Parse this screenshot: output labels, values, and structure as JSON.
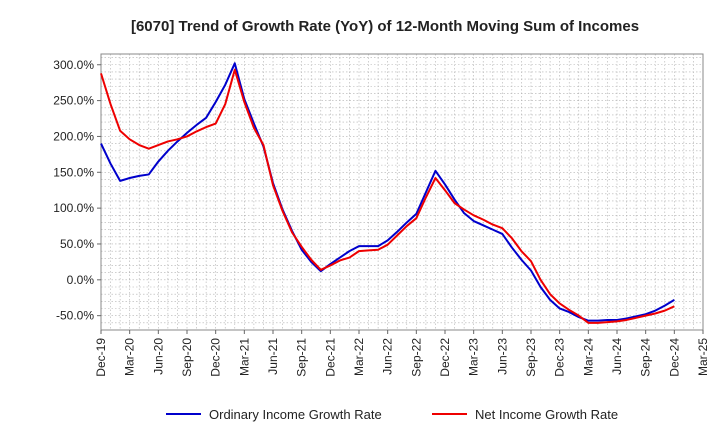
{
  "chart_data": {
    "type": "line",
    "title": "[6070]  Trend of Growth Rate (YoY) of 12-Month Moving Sum of Incomes",
    "xlabel": "",
    "ylabel": "",
    "ylim": [
      -70,
      315
    ],
    "y_ticks": [
      300,
      250,
      200,
      150,
      100,
      50,
      0,
      -50
    ],
    "y_tick_labels": [
      "300.0%",
      "250.0%",
      "200.0%",
      "150.0%",
      "100.0%",
      "50.0%",
      "0.0%",
      "-50.0%"
    ],
    "x_range": [
      "2019-12",
      "2025-03"
    ],
    "x_tick_labels": [
      "Dec-19",
      "Mar-20",
      "Jun-20",
      "Sep-20",
      "Dec-20",
      "Mar-21",
      "Jun-21",
      "Sep-21",
      "Dec-21",
      "Mar-22",
      "Jun-22",
      "Sep-22",
      "Dec-22",
      "Mar-23",
      "Jun-23",
      "Sep-23",
      "Dec-23",
      "Mar-24",
      "Jun-24",
      "Sep-24",
      "Dec-24",
      "Mar-25"
    ],
    "grid": true,
    "legend_position": "bottom",
    "x": [
      "2019-12",
      "2020-01",
      "2020-02",
      "2020-03",
      "2020-04",
      "2020-05",
      "2020-06",
      "2020-07",
      "2020-08",
      "2020-09",
      "2020-10",
      "2020-11",
      "2020-12",
      "2021-01",
      "2021-02",
      "2021-03",
      "2021-04",
      "2021-05",
      "2021-06",
      "2021-07",
      "2021-08",
      "2021-09",
      "2021-10",
      "2021-11",
      "2021-12",
      "2022-01",
      "2022-02",
      "2022-03",
      "2022-04",
      "2022-05",
      "2022-06",
      "2022-07",
      "2022-08",
      "2022-09",
      "2022-10",
      "2022-11",
      "2022-12",
      "2023-01",
      "2023-02",
      "2023-03",
      "2023-04",
      "2023-05",
      "2023-06",
      "2023-07",
      "2023-08",
      "2023-09",
      "2023-10",
      "2023-11",
      "2023-12",
      "2024-01",
      "2024-02",
      "2024-03",
      "2024-04",
      "2024-05",
      "2024-06",
      "2024-07",
      "2024-08",
      "2024-09",
      "2024-10",
      "2024-11",
      "2024-12"
    ],
    "series": [
      {
        "name": "Ordinary Income Growth Rate",
        "color": "#0000cc",
        "values": [
          190,
          162,
          138,
          142,
          145,
          147,
          165,
          180,
          193,
          205,
          216,
          226,
          248,
          272,
          302,
          252,
          218,
          186,
          135,
          98,
          68,
          42,
          25,
          12,
          22,
          31,
          40,
          47,
          47,
          47,
          55,
          67,
          80,
          92,
          122,
          152,
          133,
          112,
          93,
          82,
          76,
          70,
          64,
          45,
          28,
          13,
          -10,
          -28,
          -40,
          -45,
          -52,
          -57,
          -57,
          -56,
          -56,
          -54,
          -51,
          -48,
          -43,
          -36,
          -28
        ]
      },
      {
        "name": "Net Income Growth Rate",
        "color": "#ee0000",
        "values": [
          288,
          245,
          208,
          196,
          188,
          183,
          188,
          193,
          196,
          200,
          207,
          213,
          218,
          245,
          293,
          248,
          212,
          188,
          132,
          96,
          66,
          46,
          28,
          14,
          20,
          27,
          31,
          40,
          41,
          42,
          49,
          62,
          75,
          86,
          115,
          142,
          125,
          107,
          98,
          90,
          84,
          77,
          72,
          58,
          40,
          26,
          0,
          -20,
          -33,
          -42,
          -50,
          -60,
          -60,
          -59,
          -58,
          -56,
          -53,
          -50,
          -47,
          -43,
          -37
        ]
      }
    ]
  }
}
